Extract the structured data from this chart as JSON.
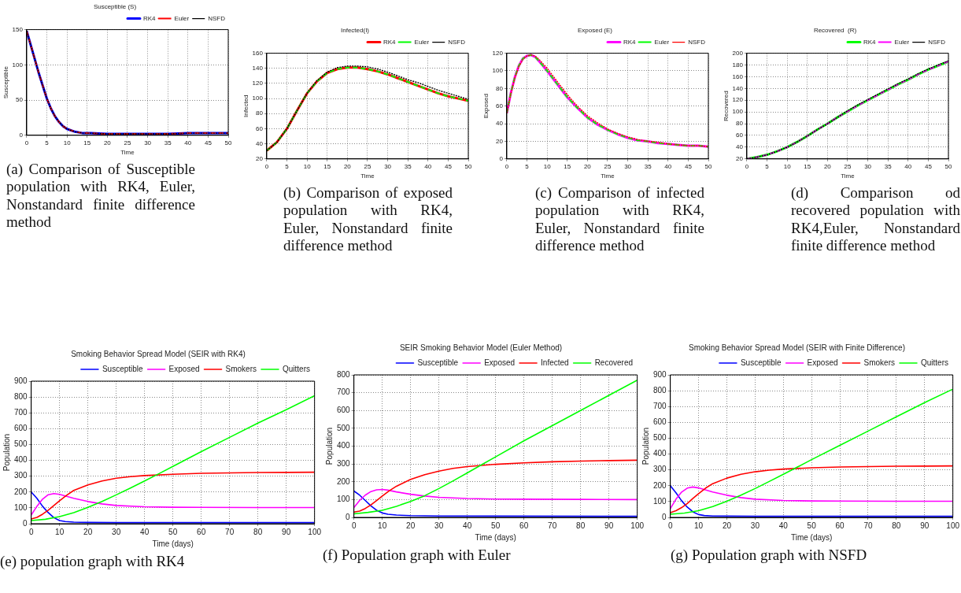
{
  "chart_data": [
    {
      "type": "line",
      "title": "Susceptible (S)",
      "xlabel": "Time",
      "ylabel": "Susceptible",
      "xlim": [
        0,
        50
      ],
      "xticks": [
        0,
        5,
        10,
        15,
        20,
        25,
        30,
        35,
        40,
        45,
        50
      ],
      "ylim": [
        0,
        150
      ],
      "yticks": [
        0,
        50,
        100,
        150
      ],
      "grid": true,
      "legend": "top right",
      "marker": "none",
      "series": [
        {
          "name": "RK4",
          "color": "#0000ff",
          "line_style": "solid",
          "x": [
            0,
            1,
            2,
            3,
            4,
            5,
            6,
            7,
            8,
            9,
            10,
            12,
            14,
            16,
            20,
            25,
            30,
            35,
            40,
            45,
            50
          ],
          "values": [
            148,
            128,
            108,
            88,
            70,
            52,
            38,
            27,
            19,
            13,
            9,
            5,
            3,
            3,
            2,
            2,
            2,
            2,
            3,
            3,
            3
          ]
        },
        {
          "name": "Euler",
          "color": "#ff0000",
          "line_style": "dashed",
          "x": [
            0,
            1,
            2,
            3,
            4,
            5,
            6,
            7,
            8,
            9,
            10,
            12,
            14,
            16,
            20,
            25,
            30,
            35,
            40,
            45,
            50
          ],
          "values": [
            148,
            128,
            108,
            88,
            70,
            52,
            38,
            27,
            19,
            13,
            9,
            5,
            3,
            3,
            2,
            2,
            2,
            2,
            3,
            3,
            3
          ]
        },
        {
          "name": "NSFD",
          "color": "#000000",
          "line_style": "dotted",
          "x": [
            0,
            1,
            2,
            3,
            4,
            5,
            6,
            7,
            8,
            9,
            10,
            12,
            14,
            16,
            20,
            25,
            30,
            35,
            40,
            45,
            50
          ],
          "values": [
            148,
            128,
            108,
            88,
            70,
            52,
            38,
            27,
            19,
            13,
            9,
            5,
            3,
            3,
            2,
            2,
            2,
            2,
            3,
            3,
            3
          ]
        }
      ],
      "annotations": [
        "(a) Comparison of Susceptible population with RK4, Euler, Nonstandard finite difference method"
      ]
    },
    {
      "type": "line",
      "title": "Infected(I)",
      "xlabel": "Time",
      "ylabel": "Infected",
      "xlim": [
        0,
        50
      ],
      "xticks": [
        0,
        5,
        10,
        15,
        20,
        25,
        30,
        35,
        40,
        45,
        50
      ],
      "ylim": [
        20,
        160
      ],
      "yticks": [
        20,
        40,
        60,
        80,
        100,
        120,
        140,
        160
      ],
      "grid": true,
      "legend": "top right",
      "marker": "none",
      "series": [
        {
          "name": "RK4",
          "color": "#ff0000",
          "line_style": "solid",
          "x": [
            0,
            2.5,
            5,
            7.5,
            10,
            12.5,
            15,
            17.5,
            20,
            22.5,
            25,
            27.5,
            30,
            32.5,
            35,
            37.5,
            40,
            42.5,
            45,
            47.5,
            50
          ],
          "values": [
            31,
            42,
            60,
            84,
            107,
            123,
            134,
            139,
            141,
            141,
            139,
            136,
            132,
            127,
            122,
            117,
            112,
            107,
            103,
            100,
            97
          ]
        },
        {
          "name": "Euler",
          "color": "#00ff00",
          "line_style": "dashed",
          "x": [
            0,
            2.5,
            5,
            7.5,
            10,
            12.5,
            15,
            17.5,
            20,
            22.5,
            25,
            27.5,
            30,
            32.5,
            35,
            37.5,
            40,
            42.5,
            45,
            47.5,
            50
          ],
          "values": [
            31,
            42,
            60,
            84,
            107,
            123,
            134,
            139,
            141,
            141,
            139,
            136,
            132,
            127,
            122,
            117,
            112,
            107,
            103,
            100,
            97
          ]
        },
        {
          "name": "NSFD",
          "color": "#000000",
          "line_style": "dotted",
          "x": [
            0,
            2.5,
            5,
            7.5,
            10,
            12.5,
            15,
            17.5,
            20,
            22.5,
            25,
            27.5,
            30,
            32.5,
            35,
            37.5,
            40,
            42.5,
            45,
            47.5,
            50
          ],
          "values": [
            31,
            42,
            60,
            84,
            107,
            124,
            135,
            141,
            143,
            143,
            142,
            139,
            135,
            130,
            125,
            121,
            116,
            111,
            107,
            103,
            99
          ]
        }
      ],
      "annotations": [
        "(b) Comparison of exposed population with RK4, Euler, Nonstandard finite difference method"
      ]
    },
    {
      "type": "line",
      "title": "Exposed (E)",
      "xlabel": "Time",
      "ylabel": "Exposed",
      "xlim": [
        0,
        50
      ],
      "xticks": [
        0,
        5,
        10,
        15,
        20,
        25,
        30,
        35,
        40,
        45,
        50
      ],
      "ylim": [
        0,
        120
      ],
      "yticks": [
        0,
        20,
        40,
        60,
        80,
        100,
        120
      ],
      "grid": true,
      "legend": "top right",
      "marker": "none",
      "series": [
        {
          "name": "RK4",
          "color": "#ff00ff",
          "line_style": "solid",
          "x": [
            0,
            1,
            2,
            3,
            4,
            5,
            6,
            7,
            8,
            10,
            12.5,
            15,
            17.5,
            20,
            22.5,
            25,
            27.5,
            30,
            32.5,
            35,
            37.5,
            40,
            42.5,
            45,
            47.5,
            50
          ],
          "values": [
            52,
            75,
            93,
            106,
            114,
            117,
            118,
            116,
            111,
            100,
            85,
            70,
            58,
            47,
            39,
            33,
            28,
            24,
            21,
            20,
            18,
            17,
            16,
            15,
            15,
            14
          ]
        },
        {
          "name": "Euler",
          "color": "#00ff00",
          "line_style": "dashed",
          "x": [
            0,
            1,
            2,
            3,
            4,
            5,
            6,
            7,
            8,
            10,
            12.5,
            15,
            17.5,
            20,
            22.5,
            25,
            27.5,
            30,
            32.5,
            35,
            37.5,
            40,
            42.5,
            45,
            47.5,
            50
          ],
          "values": [
            52,
            75,
            93,
            106,
            114,
            117,
            118,
            116,
            111,
            100,
            85,
            70,
            58,
            47,
            39,
            33,
            28,
            24,
            21,
            20,
            18,
            17,
            16,
            15,
            15,
            14
          ]
        },
        {
          "name": "NSFD",
          "color": "#ff0000",
          "line_style": "dotted",
          "x": [
            0,
            1,
            2,
            3,
            4,
            5,
            6,
            7,
            8,
            10,
            12.5,
            15,
            17.5,
            20,
            22.5,
            25,
            27.5,
            30,
            32.5,
            35,
            37.5,
            40,
            42.5,
            45,
            47.5,
            50
          ],
          "values": [
            52,
            74,
            92,
            105,
            113,
            117,
            118,
            117,
            113,
            103,
            88,
            73,
            60,
            49,
            41,
            34,
            29,
            25,
            22,
            20,
            19,
            17,
            16,
            15,
            15,
            14
          ]
        }
      ],
      "annotations": [
        "(c) Comparison of infected population with RK4, Euler, Nonstandard finite difference method"
      ]
    },
    {
      "type": "line",
      "title": "Recovered  (R)",
      "xlabel": "Time",
      "ylabel": "Recovered",
      "xlim": [
        0,
        50
      ],
      "xticks": [
        0,
        5,
        10,
        15,
        20,
        25,
        30,
        35,
        40,
        45,
        50
      ],
      "ylim": [
        20,
        200
      ],
      "yticks": [
        20,
        40,
        60,
        80,
        100,
        120,
        140,
        160,
        180,
        200
      ],
      "grid": true,
      "legend": "top right",
      "marker": "none",
      "series": [
        {
          "name": "RK4",
          "color": "#00ff00",
          "line_style": "solid",
          "x": [
            0,
            2.5,
            5,
            7.5,
            10,
            12.5,
            15,
            17.5,
            20,
            22.5,
            25,
            27.5,
            30,
            32.5,
            35,
            37.5,
            40,
            42.5,
            45,
            47.5,
            50
          ],
          "values": [
            20,
            23,
            27,
            33,
            40,
            49,
            59,
            70,
            80,
            91,
            101,
            111,
            120,
            129,
            138,
            147,
            155,
            164,
            172,
            179,
            186
          ]
        },
        {
          "name": "Euler",
          "color": "#ff00ff",
          "line_style": "dashed",
          "x": [
            0,
            2.5,
            5,
            7.5,
            10,
            12.5,
            15,
            17.5,
            20,
            22.5,
            25,
            27.5,
            30,
            32.5,
            35,
            37.5,
            40,
            42.5,
            45,
            47.5,
            50
          ],
          "values": [
            20,
            23,
            27,
            33,
            40,
            49,
            59,
            70,
            80,
            91,
            101,
            111,
            120,
            129,
            138,
            147,
            155,
            164,
            172,
            179,
            186
          ]
        },
        {
          "name": "NSFD",
          "color": "#000000",
          "line_style": "dotted",
          "x": [
            0,
            2.5,
            5,
            7.5,
            10,
            12.5,
            15,
            17.5,
            20,
            22.5,
            25,
            27.5,
            30,
            32.5,
            35,
            37.5,
            40,
            42.5,
            45,
            47.5,
            50
          ],
          "values": [
            20,
            23,
            27,
            33,
            40,
            49,
            59,
            70,
            80,
            91,
            102,
            112,
            121,
            130,
            139,
            148,
            156,
            165,
            173,
            180,
            187
          ]
        }
      ],
      "annotations": [
        "(d) Comparison od recovered population with RK4,Euler, Nonstandard finite difference method"
      ]
    },
    {
      "type": "line",
      "title": "Smoking Behavior Spread Model (SEIR with RK4)",
      "xlabel": "Time (days)",
      "ylabel": "Population",
      "xlim": [
        0,
        100
      ],
      "xticks": [
        0,
        10,
        20,
        30,
        40,
        50,
        60,
        70,
        80,
        90,
        100
      ],
      "ylim": [
        0,
        900
      ],
      "yticks": [
        0,
        100,
        200,
        300,
        400,
        500,
        600,
        700,
        800,
        900
      ],
      "grid": true,
      "legend": "top right",
      "marker": "none",
      "series": [
        {
          "name": "Susceptible",
          "color": "#0000ff",
          "x": [
            0,
            2,
            4,
            6,
            8,
            10,
            12,
            15,
            20,
            30,
            50,
            70,
            100
          ],
          "values": [
            200,
            160,
            110,
            70,
            38,
            20,
            14,
            10,
            8,
            7,
            7,
            7,
            7
          ]
        },
        {
          "name": "Exposed",
          "color": "#ff00ff",
          "x": [
            0,
            2,
            4,
            6,
            8,
            10,
            15,
            20,
            25,
            30,
            40,
            50,
            60,
            80,
            100
          ],
          "values": [
            55,
            110,
            155,
            183,
            190,
            185,
            160,
            140,
            125,
            115,
            107,
            104,
            103,
            102,
            102
          ]
        },
        {
          "name": "Smokers",
          "color": "#ff0000",
          "x": [
            0,
            2,
            4,
            6,
            8,
            10,
            12.5,
            15,
            20,
            25,
            30,
            35,
            40,
            50,
            60,
            70,
            80,
            90,
            100
          ],
          "values": [
            30,
            40,
            60,
            85,
            115,
            145,
            180,
            210,
            245,
            270,
            287,
            297,
            304,
            312,
            318,
            321,
            323,
            324,
            325
          ]
        },
        {
          "name": "Quitters",
          "color": "#00ff00",
          "x": [
            0,
            5,
            10,
            15,
            20,
            25,
            30,
            35,
            40,
            45,
            50,
            60,
            70,
            80,
            90,
            100
          ],
          "values": [
            20,
            28,
            45,
            70,
            103,
            140,
            182,
            225,
            270,
            315,
            362,
            455,
            545,
            635,
            720,
            808
          ]
        }
      ],
      "annotations": [
        "(e) population graph with RK4"
      ]
    },
    {
      "type": "line",
      "title": "SEIR Smoking Behavior Model (Euler Method)",
      "xlabel": "Time (days)",
      "ylabel": "Population",
      "xlim": [
        0,
        100
      ],
      "xticks": [
        0,
        10,
        20,
        30,
        40,
        50,
        60,
        70,
        80,
        90,
        100
      ],
      "ylim": [
        0,
        800
      ],
      "yticks": [
        0,
        100,
        200,
        300,
        400,
        500,
        600,
        700,
        800
      ],
      "grid": true,
      "legend": "top right",
      "marker": "none",
      "series": [
        {
          "name": "Susceptible",
          "color": "#0000ff",
          "x": [
            0,
            2,
            4,
            6,
            8,
            10,
            12,
            15,
            20,
            30,
            50,
            100
          ],
          "values": [
            148,
            125,
            95,
            65,
            40,
            25,
            18,
            13,
            10,
            8,
            7,
            6
          ]
        },
        {
          "name": "Exposed",
          "color": "#ff00ff",
          "x": [
            0,
            2,
            4,
            6,
            8,
            10,
            12,
            15,
            20,
            25,
            30,
            40,
            50,
            60,
            80,
            100
          ],
          "values": [
            55,
            95,
            125,
            145,
            155,
            157,
            153,
            143,
            130,
            120,
            113,
            106,
            103,
            102,
            101,
            100
          ]
        },
        {
          "name": "Infected",
          "color": "#ff0000",
          "x": [
            0,
            2,
            4,
            6,
            8,
            10,
            12.5,
            15,
            20,
            25,
            30,
            35,
            40,
            45,
            50,
            60,
            70,
            80,
            90,
            100
          ],
          "values": [
            30,
            35,
            50,
            70,
            95,
            120,
            150,
            175,
            213,
            240,
            260,
            275,
            285,
            292,
            298,
            306,
            312,
            316,
            319,
            321
          ]
        },
        {
          "name": "Recovered",
          "color": "#00ff00",
          "x": [
            0,
            5,
            10,
            15,
            20,
            25,
            30,
            35,
            40,
            45,
            50,
            60,
            70,
            80,
            90,
            100
          ],
          "values": [
            20,
            28,
            40,
            62,
            90,
            122,
            162,
            205,
            250,
            295,
            340,
            430,
            515,
            600,
            685,
            770
          ]
        }
      ],
      "annotations": [
        "(f) Population graph with Euler"
      ]
    },
    {
      "type": "line",
      "title": "Smoking Behavior Spread Model (SEIR with Finite Difference)",
      "xlabel": "Time (days)",
      "ylabel": "Population",
      "xlim": [
        0,
        100
      ],
      "xticks": [
        0,
        10,
        20,
        30,
        40,
        50,
        60,
        70,
        80,
        90,
        100
      ],
      "ylim": [
        0,
        900
      ],
      "yticks": [
        0,
        100,
        200,
        300,
        400,
        500,
        600,
        700,
        800,
        900
      ],
      "grid": true,
      "legend": "top right",
      "marker": "none",
      "series": [
        {
          "name": "Susceptible",
          "color": "#0000ff",
          "x": [
            0,
            2,
            4,
            6,
            8,
            10,
            12,
            15,
            20,
            30,
            50,
            70,
            100
          ],
          "values": [
            200,
            155,
            105,
            65,
            35,
            18,
            12,
            9,
            8,
            7,
            7,
            7,
            7
          ]
        },
        {
          "name": "Exposed",
          "color": "#ff00ff",
          "x": [
            0,
            2,
            4,
            6,
            8,
            10,
            15,
            20,
            25,
            30,
            40,
            50,
            60,
            80,
            100
          ],
          "values": [
            55,
            115,
            160,
            185,
            192,
            186,
            160,
            140,
            125,
            115,
            107,
            104,
            103,
            102,
            102
          ]
        },
        {
          "name": "Smokers",
          "color": "#ff0000",
          "x": [
            0,
            2,
            4,
            6,
            8,
            10,
            12.5,
            15,
            20,
            25,
            30,
            35,
            40,
            50,
            60,
            70,
            80,
            90,
            100
          ],
          "values": [
            30,
            42,
            62,
            88,
            120,
            150,
            185,
            213,
            248,
            272,
            288,
            298,
            305,
            313,
            318,
            321,
            323,
            324,
            325
          ]
        },
        {
          "name": "Quitters",
          "color": "#00ff00",
          "x": [
            0,
            5,
            10,
            15,
            20,
            25,
            30,
            35,
            40,
            45,
            50,
            60,
            70,
            80,
            90,
            100
          ],
          "values": [
            20,
            27,
            42,
            68,
            102,
            140,
            182,
            227,
            272,
            318,
            365,
            455,
            545,
            635,
            725,
            810
          ]
        }
      ],
      "annotations": [
        "(g) Population graph with NSFD"
      ]
    }
  ]
}
